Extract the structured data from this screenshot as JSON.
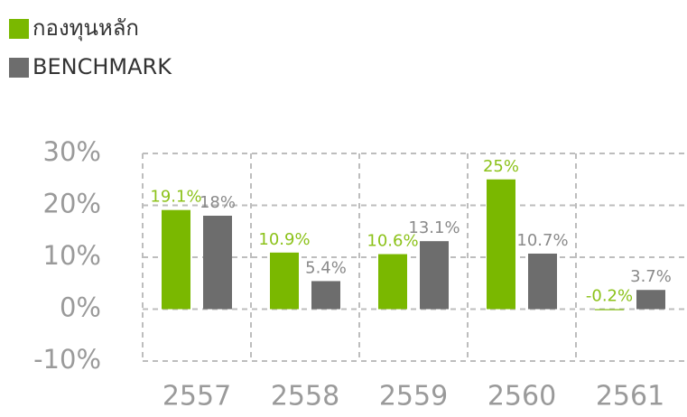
{
  "chart_data": {
    "type": "bar",
    "categories": [
      "2557",
      "2558",
      "2559",
      "2560",
      "2561"
    ],
    "series": [
      {
        "name": "กองทุนหลัก",
        "color": "#7ab800",
        "values": [
          19.1,
          10.9,
          10.6,
          25,
          -0.2
        ],
        "value_labels": [
          "19.1%",
          "10.9%",
          "10.6%",
          "25%",
          "-0.2%"
        ]
      },
      {
        "name": "BENCHMARK",
        "color": "#6d6d6d",
        "values": [
          18,
          5.4,
          13.1,
          10.7,
          3.7
        ],
        "value_labels": [
          "18%",
          "5.4%",
          "13.1%",
          "10.7%",
          "3.7%"
        ]
      }
    ],
    "ylim": [
      -10,
      30
    ],
    "yticks": [
      {
        "value": -10,
        "label": "-10%"
      },
      {
        "value": 0,
        "label": "0%"
      },
      {
        "value": 10,
        "label": "10%"
      },
      {
        "value": 20,
        "label": "20%"
      },
      {
        "value": 30,
        "label": "30%"
      }
    ],
    "grid": true
  }
}
